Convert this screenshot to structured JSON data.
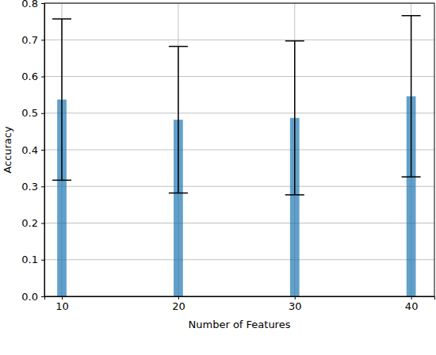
{
  "chart_data": {
    "type": "bar",
    "x": [
      10,
      20,
      30,
      40
    ],
    "values": [
      0.537,
      0.482,
      0.487,
      0.546
    ],
    "errors": [
      0.22,
      0.2,
      0.21,
      0.22
    ],
    "color": "#1f77b4",
    "x_label": "Number of Features",
    "y_label": "Accuracy",
    "xlim": [
      8.5,
      42
    ],
    "xticks": [
      10,
      20,
      30,
      40
    ],
    "ylim": [
      0,
      0.8
    ],
    "yticks": [
      {
        "value": 0,
        "label": "0.0"
      },
      0.1,
      0.2,
      0.3,
      0.4,
      0.5,
      0.6,
      0.7,
      0.8
    ],
    "grid": true
  }
}
